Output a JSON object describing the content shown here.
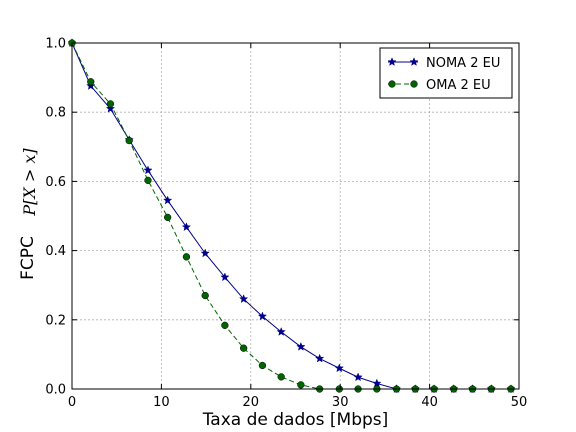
{
  "chart_data": {
    "type": "line",
    "xlabel": "Taxa de dados [Mbps]",
    "ylabel": "FCPC",
    "ylabel_math": "P[X > x]",
    "xlim": [
      0,
      50
    ],
    "ylim": [
      0,
      1
    ],
    "xticks": [
      "0",
      "10",
      "20",
      "30",
      "40",
      "50"
    ],
    "yticks": [
      "0.0",
      "0.2",
      "0.4",
      "0.6",
      "0.8",
      "1.0"
    ],
    "grid": true,
    "legend_position": "top-right",
    "series": [
      {
        "name": "NOMA 2 EU",
        "color": "#00008b",
        "line_style": "solid",
        "marker": "star",
        "x": [
          0,
          2.1,
          4.3,
          6.4,
          8.5,
          10.7,
          12.8,
          14.9,
          17.1,
          19.2,
          21.3,
          23.4,
          25.6,
          27.7,
          29.9,
          32.0,
          34.1,
          36.3,
          38.4,
          40.5,
          42.7,
          44.8,
          46.9,
          49.1
        ],
        "y": [
          1.0,
          0.876,
          0.81,
          0.72,
          0.632,
          0.545,
          0.468,
          0.392,
          0.323,
          0.26,
          0.21,
          0.165,
          0.122,
          0.088,
          0.06,
          0.034,
          0.016,
          0.0,
          0.0,
          0.0,
          0.0,
          0.0,
          0.0,
          0.0
        ]
      },
      {
        "name": "OMA 2 EU",
        "color": "#006400",
        "line_style": "dashed",
        "marker": "circle",
        "x": [
          0,
          2.1,
          4.3,
          6.4,
          8.5,
          10.7,
          12.8,
          14.9,
          17.1,
          19.2,
          21.3,
          23.4,
          25.6,
          27.7,
          29.9,
          32.0,
          34.1,
          36.3,
          38.4,
          40.5,
          42.7,
          44.8,
          46.9,
          49.1
        ],
        "y": [
          1.0,
          0.888,
          0.824,
          0.718,
          0.603,
          0.496,
          0.382,
          0.27,
          0.184,
          0.118,
          0.068,
          0.035,
          0.012,
          0.0,
          0.0,
          0.0,
          0.0,
          0.0,
          0.0,
          0.0,
          0.0,
          0.0,
          0.0,
          0.0
        ]
      }
    ]
  }
}
